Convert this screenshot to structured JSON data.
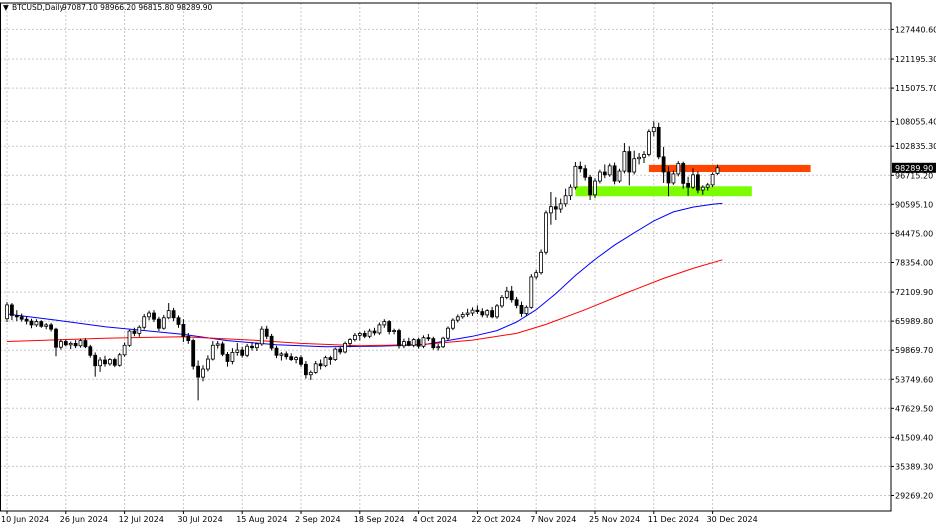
{
  "header": {
    "symbol": "BTCUSD,Daily",
    "ohlc": "97087.10 98966.20 96815.80 98289.90"
  },
  "colors": {
    "background": "#ffffff",
    "grid": "#c8c8c8",
    "candle_outline": "#000000",
    "candle_up_fill": "#ffffff",
    "candle_down_fill": "#000000",
    "ma_fast": "#0000ff",
    "ma_slow": "#ff0000",
    "resistance_zone": "#ff4500",
    "support_zone": "#7cfc00"
  },
  "chart_data": {
    "type": "candlestick",
    "title": "",
    "xlabel": "",
    "ylabel": "",
    "grid": true,
    "ylim": [
      26000,
      133000
    ],
    "y_ticks": [
      "127440.60",
      "121195.30",
      "115075.70",
      "108055.40",
      "102835.30",
      "96715.20",
      "90595.10",
      "84475.00",
      "78354.00",
      "72109.90",
      "65989.80",
      "59869.70",
      "53749.60",
      "47629.50",
      "41509.40",
      "35389.30",
      "29269.20"
    ],
    "x_tick_labels": [
      "10 Jun 2024",
      "26 Jun 2024",
      "12 Jul 2024",
      "30 Jul 2024",
      "15 Aug 2024",
      "2 Sep 2024",
      "18 Sep 2024",
      "4 Oct 2024",
      "22 Oct 2024",
      "7 Nov 2024",
      "25 Nov 2024",
      "11 Dec 2024",
      "30 Dec 2024"
    ],
    "x_tick_index": [
      0,
      12,
      24,
      36,
      48,
      60,
      72,
      84,
      96,
      108,
      120,
      132,
      144
    ],
    "current_price": 98289.9,
    "current_price_label": "98289.90",
    "zones": [
      {
        "name": "resistance",
        "low": 97400,
        "high": 98900,
        "start_index": 131,
        "end_index": 164
      },
      {
        "name": "support",
        "low": 92300,
        "high": 94400,
        "start_index": 116,
        "end_index": 152
      }
    ],
    "candles": [
      {
        "o": 66500,
        "h": 70000,
        "l": 65800,
        "c": 69400
      },
      {
        "o": 69400,
        "h": 69800,
        "l": 66200,
        "c": 67200
      },
      {
        "o": 67200,
        "h": 68300,
        "l": 66000,
        "c": 66900
      },
      {
        "o": 66900,
        "h": 67600,
        "l": 65900,
        "c": 66400
      },
      {
        "o": 66400,
        "h": 67000,
        "l": 65300,
        "c": 66000
      },
      {
        "o": 66000,
        "h": 66500,
        "l": 64500,
        "c": 65200
      },
      {
        "o": 65200,
        "h": 66400,
        "l": 64800,
        "c": 65900
      },
      {
        "o": 65900,
        "h": 66200,
        "l": 64600,
        "c": 64900
      },
      {
        "o": 64900,
        "h": 65600,
        "l": 64300,
        "c": 65200
      },
      {
        "o": 65200,
        "h": 65600,
        "l": 63800,
        "c": 64300
      },
      {
        "o": 64300,
        "h": 64600,
        "l": 58600,
        "c": 60500
      },
      {
        "o": 60500,
        "h": 62200,
        "l": 60000,
        "c": 61700
      },
      {
        "o": 61700,
        "h": 62100,
        "l": 60700,
        "c": 61000
      },
      {
        "o": 61000,
        "h": 61700,
        "l": 60100,
        "c": 61300
      },
      {
        "o": 61300,
        "h": 62000,
        "l": 60300,
        "c": 60800
      },
      {
        "o": 60800,
        "h": 62300,
        "l": 60400,
        "c": 61900
      },
      {
        "o": 61900,
        "h": 62400,
        "l": 60300,
        "c": 60600
      },
      {
        "o": 60600,
        "h": 61000,
        "l": 58300,
        "c": 58800
      },
      {
        "o": 58800,
        "h": 59400,
        "l": 54300,
        "c": 56600
      },
      {
        "o": 56600,
        "h": 58400,
        "l": 55300,
        "c": 57800
      },
      {
        "o": 57800,
        "h": 58700,
        "l": 56400,
        "c": 57000
      },
      {
        "o": 57000,
        "h": 58200,
        "l": 56600,
        "c": 57900
      },
      {
        "o": 57900,
        "h": 58300,
        "l": 56300,
        "c": 56700
      },
      {
        "o": 56700,
        "h": 59300,
        "l": 56400,
        "c": 58900
      },
      {
        "o": 58900,
        "h": 61500,
        "l": 58500,
        "c": 60900
      },
      {
        "o": 60900,
        "h": 64200,
        "l": 60600,
        "c": 63900
      },
      {
        "o": 63900,
        "h": 64600,
        "l": 62800,
        "c": 63400
      },
      {
        "o": 63400,
        "h": 65100,
        "l": 62700,
        "c": 64700
      },
      {
        "o": 64700,
        "h": 67500,
        "l": 64200,
        "c": 66900
      },
      {
        "o": 66900,
        "h": 68200,
        "l": 66200,
        "c": 67700
      },
      {
        "o": 67700,
        "h": 68300,
        "l": 65800,
        "c": 66400
      },
      {
        "o": 66400,
        "h": 66900,
        "l": 63900,
        "c": 64500
      },
      {
        "o": 64500,
        "h": 67300,
        "l": 64200,
        "c": 66700
      },
      {
        "o": 66700,
        "h": 69800,
        "l": 66400,
        "c": 68200
      },
      {
        "o": 68200,
        "h": 68800,
        "l": 66000,
        "c": 66700
      },
      {
        "o": 66700,
        "h": 67200,
        "l": 64600,
        "c": 65300
      },
      {
        "o": 65300,
        "h": 66400,
        "l": 61600,
        "c": 62800
      },
      {
        "o": 62800,
        "h": 63500,
        "l": 61200,
        "c": 61900
      },
      {
        "o": 61900,
        "h": 62300,
        "l": 55800,
        "c": 56500
      },
      {
        "o": 56500,
        "h": 57700,
        "l": 49300,
        "c": 54200
      },
      {
        "o": 54200,
        "h": 56700,
        "l": 53300,
        "c": 55900
      },
      {
        "o": 55900,
        "h": 58800,
        "l": 55400,
        "c": 58000
      },
      {
        "o": 58000,
        "h": 61800,
        "l": 57700,
        "c": 60900
      },
      {
        "o": 60900,
        "h": 61800,
        "l": 60200,
        "c": 61200
      },
      {
        "o": 61200,
        "h": 61700,
        "l": 58600,
        "c": 59000
      },
      {
        "o": 59000,
        "h": 59500,
        "l": 56400,
        "c": 57500
      },
      {
        "o": 57500,
        "h": 60300,
        "l": 56900,
        "c": 59400
      },
      {
        "o": 59400,
        "h": 61400,
        "l": 58700,
        "c": 59900
      },
      {
        "o": 59900,
        "h": 60600,
        "l": 58300,
        "c": 58800
      },
      {
        "o": 58800,
        "h": 61200,
        "l": 58400,
        "c": 60700
      },
      {
        "o": 60700,
        "h": 61600,
        "l": 59800,
        "c": 60400
      },
      {
        "o": 60400,
        "h": 61500,
        "l": 59700,
        "c": 61200
      },
      {
        "o": 61200,
        "h": 64900,
        "l": 60800,
        "c": 64300
      },
      {
        "o": 64300,
        "h": 65000,
        "l": 62200,
        "c": 62800
      },
      {
        "o": 62800,
        "h": 63300,
        "l": 59800,
        "c": 60300
      },
      {
        "o": 60300,
        "h": 60800,
        "l": 58200,
        "c": 58800
      },
      {
        "o": 58800,
        "h": 59500,
        "l": 57700,
        "c": 59100
      },
      {
        "o": 59100,
        "h": 59600,
        "l": 57900,
        "c": 58500
      },
      {
        "o": 58500,
        "h": 59200,
        "l": 57600,
        "c": 57900
      },
      {
        "o": 57900,
        "h": 58600,
        "l": 57100,
        "c": 58300
      },
      {
        "o": 58300,
        "h": 58800,
        "l": 56400,
        "c": 56900
      },
      {
        "o": 56900,
        "h": 57600,
        "l": 53900,
        "c": 54700
      },
      {
        "o": 54700,
        "h": 55600,
        "l": 53600,
        "c": 55200
      },
      {
        "o": 55200,
        "h": 57600,
        "l": 54900,
        "c": 57000
      },
      {
        "o": 57000,
        "h": 57900,
        "l": 55800,
        "c": 56600
      },
      {
        "o": 56600,
        "h": 58700,
        "l": 56300,
        "c": 58300
      },
      {
        "o": 58300,
        "h": 58700,
        "l": 56800,
        "c": 57900
      },
      {
        "o": 57900,
        "h": 60400,
        "l": 57600,
        "c": 60100
      },
      {
        "o": 60100,
        "h": 60600,
        "l": 59000,
        "c": 59500
      },
      {
        "o": 59500,
        "h": 61700,
        "l": 59200,
        "c": 61300
      },
      {
        "o": 61300,
        "h": 62400,
        "l": 60500,
        "c": 62100
      },
      {
        "o": 62100,
        "h": 63500,
        "l": 61700,
        "c": 63000
      },
      {
        "o": 63000,
        "h": 63700,
        "l": 61900,
        "c": 63400
      },
      {
        "o": 63400,
        "h": 64000,
        "l": 62400,
        "c": 62800
      },
      {
        "o": 62800,
        "h": 64400,
        "l": 62400,
        "c": 63900
      },
      {
        "o": 63900,
        "h": 64600,
        "l": 63000,
        "c": 63500
      },
      {
        "o": 63500,
        "h": 65700,
        "l": 63100,
        "c": 65200
      },
      {
        "o": 65200,
        "h": 66400,
        "l": 64600,
        "c": 65900
      },
      {
        "o": 65900,
        "h": 66200,
        "l": 63200,
        "c": 63800
      },
      {
        "o": 63800,
        "h": 64400,
        "l": 63200,
        "c": 64000
      },
      {
        "o": 64000,
        "h": 64400,
        "l": 60200,
        "c": 60800
      },
      {
        "o": 60800,
        "h": 62300,
        "l": 60300,
        "c": 61700
      },
      {
        "o": 61700,
        "h": 62500,
        "l": 60700,
        "c": 60900
      },
      {
        "o": 60900,
        "h": 62400,
        "l": 60500,
        "c": 62100
      },
      {
        "o": 62100,
        "h": 62500,
        "l": 60200,
        "c": 60700
      },
      {
        "o": 60700,
        "h": 63000,
        "l": 60300,
        "c": 62500
      },
      {
        "o": 62500,
        "h": 63300,
        "l": 61800,
        "c": 62300
      },
      {
        "o": 62300,
        "h": 62700,
        "l": 60000,
        "c": 60400
      },
      {
        "o": 60400,
        "h": 61200,
        "l": 59800,
        "c": 60600
      },
      {
        "o": 60600,
        "h": 62700,
        "l": 60300,
        "c": 62400
      },
      {
        "o": 62400,
        "h": 64900,
        "l": 62000,
        "c": 64500
      },
      {
        "o": 64500,
        "h": 66600,
        "l": 64100,
        "c": 66200
      },
      {
        "o": 66200,
        "h": 67400,
        "l": 65700,
        "c": 66900
      },
      {
        "o": 66900,
        "h": 67900,
        "l": 66500,
        "c": 67400
      },
      {
        "o": 67400,
        "h": 68600,
        "l": 66900,
        "c": 67700
      },
      {
        "o": 67700,
        "h": 68900,
        "l": 67100,
        "c": 68300
      },
      {
        "o": 68300,
        "h": 69300,
        "l": 67500,
        "c": 68000
      },
      {
        "o": 68000,
        "h": 68700,
        "l": 66800,
        "c": 67300
      },
      {
        "o": 67300,
        "h": 68500,
        "l": 66700,
        "c": 68200
      },
      {
        "o": 68200,
        "h": 69000,
        "l": 66600,
        "c": 66900
      },
      {
        "o": 66900,
        "h": 69600,
        "l": 66500,
        "c": 69200
      },
      {
        "o": 69200,
        "h": 71500,
        "l": 68800,
        "c": 71000
      },
      {
        "o": 71000,
        "h": 73200,
        "l": 70600,
        "c": 72300
      },
      {
        "o": 72300,
        "h": 73400,
        "l": 69900,
        "c": 70500
      },
      {
        "o": 70500,
        "h": 71100,
        "l": 68700,
        "c": 69300
      },
      {
        "o": 69300,
        "h": 70100,
        "l": 66900,
        "c": 67600
      },
      {
        "o": 67600,
        "h": 69300,
        "l": 67100,
        "c": 68900
      },
      {
        "o": 68900,
        "h": 75900,
        "l": 68600,
        "c": 75300
      },
      {
        "o": 75300,
        "h": 76800,
        "l": 74800,
        "c": 76200
      },
      {
        "o": 76200,
        "h": 81100,
        "l": 75800,
        "c": 80500
      },
      {
        "o": 80500,
        "h": 89300,
        "l": 80000,
        "c": 88800
      },
      {
        "o": 88800,
        "h": 93200,
        "l": 86300,
        "c": 90100
      },
      {
        "o": 90100,
        "h": 92100,
        "l": 87300,
        "c": 89600
      },
      {
        "o": 89600,
        "h": 91800,
        "l": 88800,
        "c": 90700
      },
      {
        "o": 90700,
        "h": 93900,
        "l": 90100,
        "c": 92400
      },
      {
        "o": 92400,
        "h": 94800,
        "l": 91500,
        "c": 94200
      },
      {
        "o": 94200,
        "h": 99500,
        "l": 93700,
        "c": 98600
      },
      {
        "o": 98600,
        "h": 99600,
        "l": 97300,
        "c": 98100
      },
      {
        "o": 98100,
        "h": 98900,
        "l": 95600,
        "c": 96300
      },
      {
        "o": 96300,
        "h": 96800,
        "l": 91500,
        "c": 92600
      },
      {
        "o": 92600,
        "h": 96100,
        "l": 91900,
        "c": 95500
      },
      {
        "o": 95500,
        "h": 97900,
        "l": 95000,
        "c": 97400
      },
      {
        "o": 97400,
        "h": 99000,
        "l": 96100,
        "c": 96800
      },
      {
        "o": 96800,
        "h": 99200,
        "l": 96400,
        "c": 98700
      },
      {
        "o": 98700,
        "h": 99400,
        "l": 94800,
        "c": 95500
      },
      {
        "o": 95500,
        "h": 98100,
        "l": 95100,
        "c": 97600
      },
      {
        "o": 97600,
        "h": 103500,
        "l": 97100,
        "c": 101700
      },
      {
        "o": 101700,
        "h": 102800,
        "l": 94600,
        "c": 97400
      },
      {
        "o": 97400,
        "h": 101900,
        "l": 96900,
        "c": 100200
      },
      {
        "o": 100200,
        "h": 101400,
        "l": 99000,
        "c": 100500
      },
      {
        "o": 100500,
        "h": 101800,
        "l": 99300,
        "c": 101100
      },
      {
        "o": 101100,
        "h": 106400,
        "l": 100700,
        "c": 105900
      },
      {
        "o": 105900,
        "h": 108100,
        "l": 104900,
        "c": 106800
      },
      {
        "o": 106800,
        "h": 107800,
        "l": 100100,
        "c": 100600
      },
      {
        "o": 100600,
        "h": 102700,
        "l": 95100,
        "c": 97400
      },
      {
        "o": 97400,
        "h": 98600,
        "l": 92300,
        "c": 95100
      },
      {
        "o": 95100,
        "h": 97700,
        "l": 94700,
        "c": 97000
      },
      {
        "o": 97000,
        "h": 99700,
        "l": 96500,
        "c": 99200
      },
      {
        "o": 99200,
        "h": 99600,
        "l": 93900,
        "c": 95000
      },
      {
        "o": 95000,
        "h": 96400,
        "l": 92400,
        "c": 94200
      },
      {
        "o": 94200,
        "h": 98200,
        "l": 93800,
        "c": 96800
      },
      {
        "o": 96800,
        "h": 97500,
        "l": 92900,
        "c": 93600
      },
      {
        "o": 93600,
        "h": 94600,
        "l": 92600,
        "c": 94200
      },
      {
        "o": 94200,
        "h": 95100,
        "l": 93500,
        "c": 94700
      },
      {
        "o": 94700,
        "h": 97300,
        "l": 94200,
        "c": 96900
      },
      {
        "o": 97087.1,
        "h": 98966.2,
        "l": 96815.8,
        "c": 98289.9
      }
    ],
    "series": [
      {
        "name": "",
        "color": "#0000ff",
        "points": [
          [
            0,
            67500
          ],
          [
            10,
            66200
          ],
          [
            20,
            64800
          ],
          [
            30,
            63800
          ],
          [
            36,
            63200
          ],
          [
            45,
            61900
          ],
          [
            55,
            61000
          ],
          [
            65,
            60600
          ],
          [
            75,
            60700
          ],
          [
            85,
            61000
          ],
          [
            95,
            62800
          ],
          [
            100,
            64000
          ],
          [
            104,
            65800
          ],
          [
            108,
            68400
          ],
          [
            112,
            71800
          ],
          [
            116,
            75600
          ],
          [
            120,
            79000
          ],
          [
            124,
            82000
          ],
          [
            128,
            84600
          ],
          [
            132,
            87100
          ],
          [
            136,
            89000
          ],
          [
            140,
            90000
          ],
          [
            144,
            90600
          ],
          [
            146,
            90800
          ]
        ]
      },
      {
        "name": "",
        "color": "#ff0000",
        "points": [
          [
            0,
            61700
          ],
          [
            20,
            62400
          ],
          [
            36,
            62700
          ],
          [
            50,
            62000
          ],
          [
            60,
            61300
          ],
          [
            72,
            60800
          ],
          [
            85,
            61100
          ],
          [
            95,
            62000
          ],
          [
            104,
            63400
          ],
          [
            110,
            65300
          ],
          [
            118,
            68400
          ],
          [
            126,
            71800
          ],
          [
            134,
            75000
          ],
          [
            140,
            77100
          ],
          [
            146,
            78900
          ]
        ]
      }
    ]
  }
}
